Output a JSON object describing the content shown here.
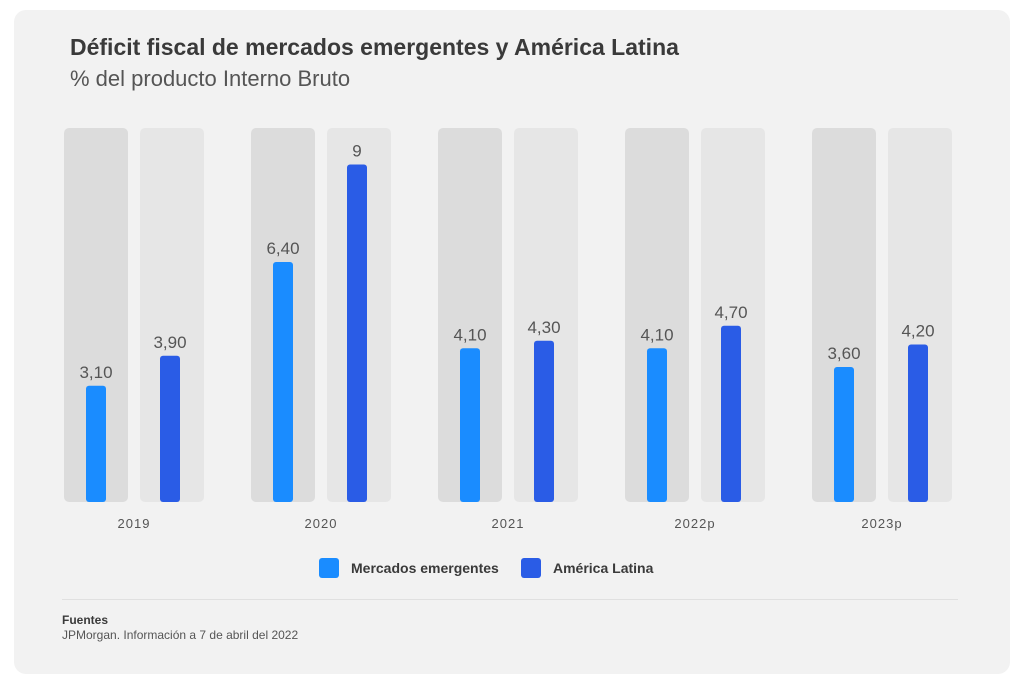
{
  "chart_data": {
    "type": "bar",
    "title": "Déficit fiscal de mercados emergentes y América Latina",
    "subtitle": "% del producto Interno Bruto",
    "categories": [
      "2019",
      "2020",
      "2021",
      "2022p",
      "2023p"
    ],
    "series": [
      {
        "name": "Mercados emergentes",
        "values": [
          3.1,
          6.4,
          4.1,
          4.1,
          3.6
        ],
        "labels": [
          "3,10",
          "6,40",
          "4,10",
          "4,10",
          "3,60"
        ]
      },
      {
        "name": "América Latina",
        "values": [
          3.9,
          9,
          4.3,
          4.7,
          4.2
        ],
        "labels": [
          "3,90",
          "9",
          "4,30",
          "4,70",
          "4,20"
        ]
      }
    ],
    "ylim": [
      0,
      10
    ],
    "grid": false,
    "legend_position": "bottom-center",
    "colors": {
      "Mercados emergentes": "#1a8cff",
      "América Latina": "#2a5ce6",
      "track_left": "#dcdcdc",
      "track_right": "#e6e6e6"
    }
  },
  "legend": {
    "items": [
      "Mercados emergentes",
      "América Latina"
    ]
  },
  "source": {
    "title": "Fuentes",
    "text": "JPMorgan. Información a 7 de abril del 2022"
  }
}
